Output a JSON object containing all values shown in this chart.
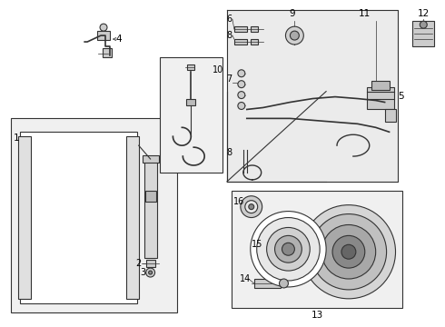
{
  "bg_color": "#ffffff",
  "line_color": "#333333",
  "box_bg": "#e8e8e8",
  "white": "#ffffff",
  "gray1": "#cccccc",
  "gray2": "#aaaaaa",
  "gray3": "#888888"
}
